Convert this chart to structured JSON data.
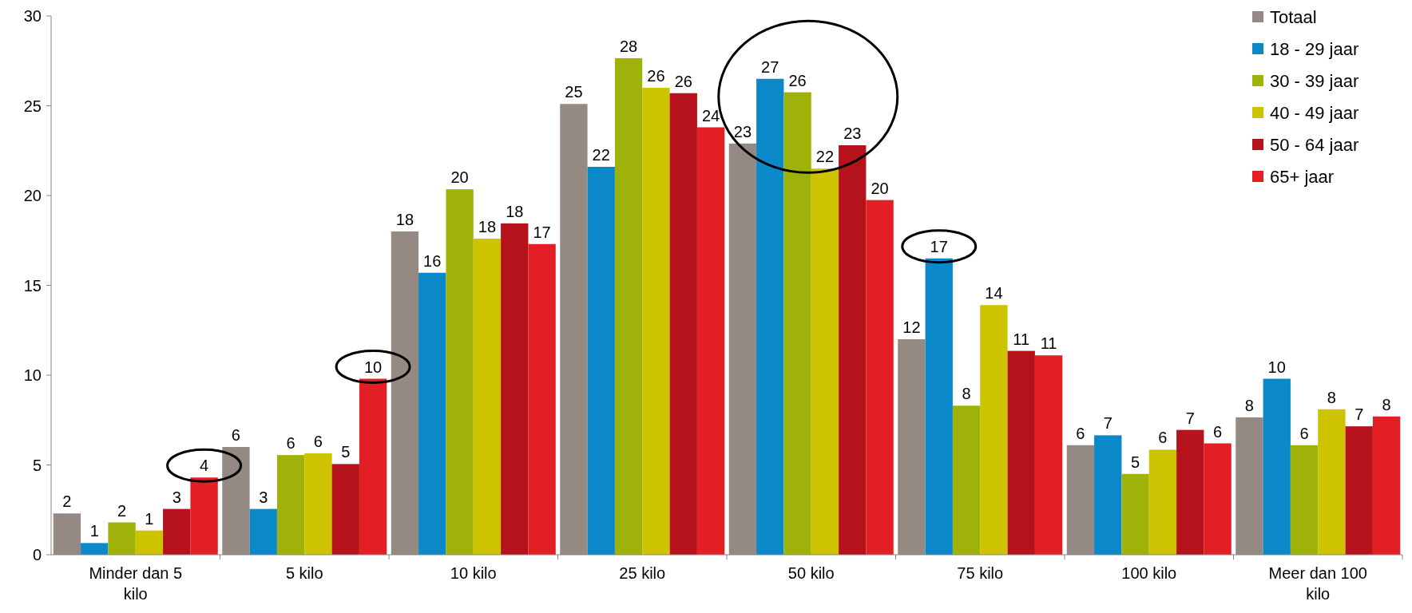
{
  "chart_data": {
    "type": "bar",
    "categories": [
      "Minder dan 5 kilo",
      "5 kilo",
      "10 kilo",
      "25 kilo",
      "50 kilo",
      "75 kilo",
      "100 kilo",
      "Meer dan 100 kilo"
    ],
    "series": [
      {
        "name": "Totaal",
        "color": "#948a83",
        "values": [
          2.3,
          6.0,
          18.0,
          25.1,
          22.9,
          12.0,
          6.1,
          7.65
        ],
        "value_labels": [
          "2",
          "6",
          "18",
          "25",
          "23",
          "12",
          "6",
          "8"
        ]
      },
      {
        "name": "18 - 29 jaar",
        "color": "#0a88c8",
        "values": [
          0.65,
          2.55,
          15.7,
          21.6,
          26.5,
          16.5,
          6.65,
          9.8
        ],
        "value_labels": [
          "1",
          "3",
          "16",
          "22",
          "27",
          "17",
          "7",
          "10"
        ]
      },
      {
        "name": "30 - 39 jaar",
        "color": "#9fb20a",
        "values": [
          1.8,
          5.55,
          20.35,
          27.65,
          25.75,
          8.3,
          4.5,
          6.1
        ],
        "value_labels": [
          "2",
          "6",
          "20",
          "28",
          "26",
          "8",
          "5",
          "6"
        ]
      },
      {
        "name": "40 - 49 jaar",
        "color": "#cdc300",
        "values": [
          1.35,
          5.65,
          17.6,
          26.0,
          21.5,
          13.9,
          5.85,
          8.1
        ],
        "value_labels": [
          "1",
          "6",
          "18",
          "26",
          "22",
          "14",
          "6",
          "8"
        ]
      },
      {
        "name": "50 - 64 jaar",
        "color": "#b5121b",
        "values": [
          2.55,
          5.05,
          18.45,
          25.7,
          22.8,
          11.35,
          6.95,
          7.15
        ],
        "value_labels": [
          "3",
          "5",
          "18",
          "26",
          "23",
          "11",
          "7",
          "7"
        ]
      },
      {
        "name": "65+ jaar",
        "color": "#e31e24",
        "values": [
          4.3,
          9.8,
          17.3,
          23.8,
          19.75,
          11.1,
          6.2,
          7.7
        ],
        "value_labels": [
          "4",
          "10",
          "17",
          "24",
          "20",
          "11",
          "6",
          "8"
        ]
      }
    ],
    "ylim": [
      0,
      30
    ],
    "yticks": [
      0,
      5,
      10,
      15,
      20,
      25,
      30
    ],
    "grid": false,
    "legend": "top right"
  }
}
